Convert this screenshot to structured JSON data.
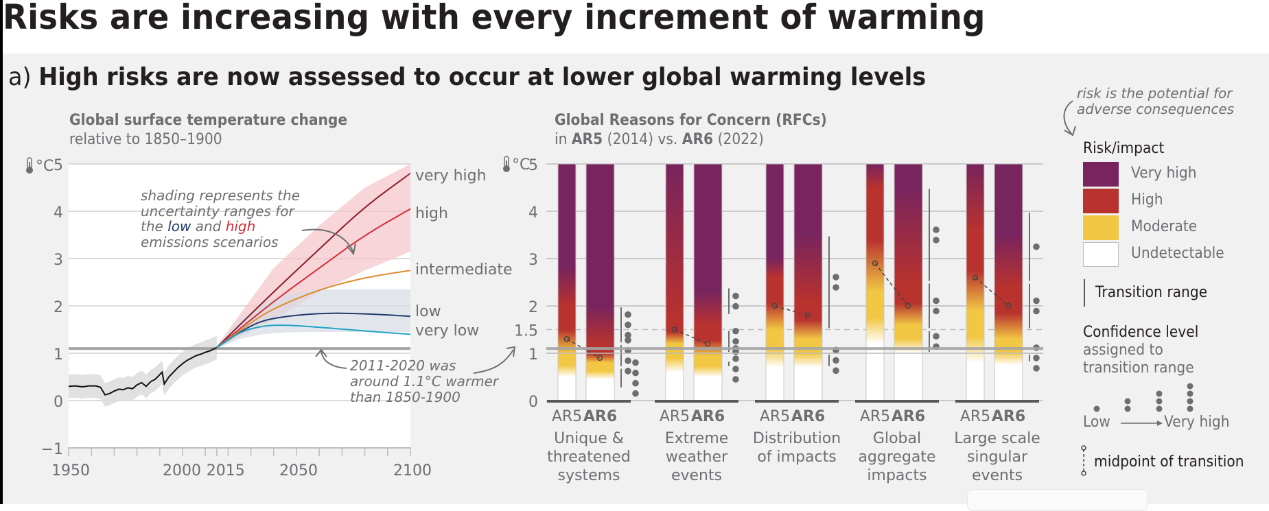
{
  "header": {
    "title": "Risks are increasing with every increment of warming"
  },
  "panel": {
    "letter": "a)",
    "title": "High risks are now assessed to occur at lower global warming levels"
  },
  "chart_data": [
    {
      "type": "line",
      "title": "Global surface temperature change",
      "subtitle": "relative to 1850–1900",
      "ylabel": "°C",
      "ylim": [
        -1,
        5
      ],
      "xlim": [
        1950,
        2100
      ],
      "yticks": [
        "5",
        "4",
        "3",
        "2",
        "1",
        "0",
        "−1"
      ],
      "ytick_values": [
        5,
        4,
        3,
        2,
        1,
        0,
        -1
      ],
      "xticks": [
        "1950",
        "2000",
        "2015",
        "2050",
        "2100"
      ],
      "xtick_values": [
        1950,
        2000,
        2015,
        2050,
        2100
      ],
      "grid": true,
      "reference_line": {
        "value": 1.1,
        "label": "2011-2020 was around 1.1°C warmer than 1850-1900"
      },
      "annotations": {
        "shading_note": [
          "shading represents the",
          "uncertainty ranges for",
          "the ",
          "low",
          " and ",
          "high",
          "emissions scenarios"
        ],
        "reference_note": [
          "2011-2020 was",
          "around 1.1°C warmer",
          "than 1850-1900"
        ]
      },
      "observed": {
        "name": "observed",
        "color": "#111111",
        "x": [
          1950,
          1953,
          1956,
          1959,
          1962,
          1964,
          1966,
          1968,
          1970,
          1972,
          1974,
          1976,
          1978,
          1980,
          1982,
          1984,
          1986,
          1988,
          1990,
          1991,
          1992,
          1994,
          1996,
          1998,
          2000,
          2002,
          2004,
          2006,
          2008,
          2010,
          2012,
          2015
        ],
        "y": [
          0.3,
          0.31,
          0.29,
          0.31,
          0.31,
          0.28,
          0.12,
          0.15,
          0.2,
          0.24,
          0.23,
          0.27,
          0.25,
          0.33,
          0.38,
          0.3,
          0.4,
          0.45,
          0.55,
          0.6,
          0.35,
          0.5,
          0.6,
          0.7,
          0.78,
          0.85,
          0.9,
          0.95,
          0.98,
          1.02,
          1.05,
          1.12
        ],
        "band_low_offset": -0.25,
        "band_high_offset": 0.25
      },
      "scenarios": [
        {
          "name": "very high",
          "color": "#8a1c2b",
          "x": [
            2015,
            2040,
            2060,
            2080,
            2100
          ],
          "y": [
            1.12,
            2.3,
            3.2,
            4.1,
            4.8
          ]
        },
        {
          "name": "high",
          "color": "#d42e3b",
          "x": [
            2015,
            2040,
            2060,
            2080,
            2100
          ],
          "y": [
            1.12,
            2.1,
            2.8,
            3.5,
            4.05
          ]
        },
        {
          "name": "intermediate",
          "color": "#e08a2f",
          "x": [
            2015,
            2030,
            2040,
            2060,
            2080,
            2100
          ],
          "y": [
            1.12,
            1.65,
            1.95,
            2.35,
            2.6,
            2.75
          ]
        },
        {
          "name": "low",
          "color": "#1f3a6b",
          "x": [
            2015,
            2030,
            2040,
            2060,
            2080,
            2100
          ],
          "y": [
            1.12,
            1.6,
            1.75,
            1.85,
            1.84,
            1.78
          ]
        },
        {
          "name": "very low",
          "color": "#1fa3c6",
          "x": [
            2015,
            2025,
            2035,
            2045,
            2060,
            2080,
            2100
          ],
          "y": [
            1.12,
            1.45,
            1.58,
            1.6,
            1.55,
            1.47,
            1.4
          ]
        }
      ],
      "uncertainty_bands": [
        {
          "name": "high emissions range",
          "color": "#f4c3c8",
          "x": [
            2015,
            2040,
            2060,
            2080,
            2100
          ],
          "low": [
            1.1,
            1.7,
            2.3,
            2.75,
            3.15
          ],
          "high": [
            1.15,
            2.8,
            3.7,
            4.5,
            5.0
          ]
        },
        {
          "name": "low emissions range",
          "color": "#d6dbe4",
          "x": [
            2015,
            2025,
            2035,
            2045,
            2060,
            2080,
            2100
          ],
          "low": [
            1.1,
            1.3,
            1.4,
            1.44,
            1.45,
            1.45,
            1.45
          ],
          "high": [
            1.15,
            1.7,
            2.05,
            2.25,
            2.35,
            2.35,
            2.35
          ]
        }
      ]
    },
    {
      "type": "bar",
      "title": "Global Reasons for Concern (RFCs)",
      "subtitle_parts": [
        "in ",
        "AR5",
        " (2014) vs. ",
        "AR6",
        " (2022)"
      ],
      "ylabel": "°C",
      "ylim": [
        0,
        5
      ],
      "yticks": [
        "5",
        "4",
        "3",
        "2",
        "1.5",
        "1",
        "0"
      ],
      "ytick_values": [
        5,
        4,
        3,
        2,
        1.5,
        1,
        0
      ],
      "grid": true,
      "reference_line": 1.1,
      "colors": {
        "very_high": "#78245e",
        "high": "#b8322e",
        "moderate": "#f2c744",
        "undetectable": "#ffffff"
      },
      "categories": [
        {
          "label": [
            "Unique &",
            "threatened",
            "systems"
          ],
          "ar5": {
            "label": "AR5",
            "undetectable_top": 0.5,
            "moderate_top": 1.0,
            "high_top": 2.0,
            "very_high_top": 2.8,
            "midpoint": 1.3
          },
          "ar6": {
            "label": "AR6",
            "undetectable_top": 0.45,
            "moderate_top": 0.8,
            "high_top": 1.2,
            "very_high_top": 2.0,
            "midpoint": 0.9
          },
          "transitions": [
            {
              "low": 1.2,
              "high": 2.0,
              "confidence": 3
            },
            {
              "low": 0.7,
              "high": 1.2,
              "confidence": 4
            },
            {
              "low": 0.25,
              "high": 0.7,
              "confidence": 4
            }
          ]
        },
        {
          "label": [
            "Extreme",
            "weather",
            "events"
          ],
          "ar5": {
            "label": "AR5",
            "undetectable_top": 0.6,
            "moderate_top": 1.2,
            "high_top": 1.7,
            "very_high_top": 5.0,
            "midpoint": 1.5
          },
          "ar6": {
            "label": "AR6",
            "undetectable_top": 0.5,
            "moderate_top": 0.95,
            "high_top": 1.6,
            "very_high_top": 2.3,
            "midpoint": 1.2
          },
          "transitions": [
            {
              "low": 1.8,
              "high": 2.4,
              "confidence": 2
            },
            {
              "low": 1.0,
              "high": 1.5,
              "confidence": 3
            },
            {
              "low": 0.7,
              "high": 0.85,
              "confidence": 4
            }
          ]
        },
        {
          "label": [
            "Distribution",
            "of impacts"
          ],
          "ar5": {
            "label": "AR5",
            "undetectable_top": 0.7,
            "moderate_top": 1.5,
            "high_top": 2.6,
            "very_high_top": 3.0,
            "midpoint": 2.0
          },
          "ar6": {
            "label": "AR6",
            "undetectable_top": 0.7,
            "moderate_top": 1.3,
            "high_top": 2.1,
            "very_high_top": 3.5,
            "midpoint": 1.8
          },
          "transitions": [
            {
              "low": 1.5,
              "high": 3.5,
              "confidence": 2
            },
            {
              "low": 0.7,
              "high": 1.0,
              "confidence": 3
            }
          ]
        },
        {
          "label": [
            "Global",
            "aggregate",
            "impacts"
          ],
          "ar5": {
            "label": "AR5",
            "undetectable_top": 1.2,
            "moderate_top": 2.3,
            "high_top": 4.5,
            "very_high_top": 5.0,
            "midpoint": 2.9
          },
          "ar6": {
            "label": "AR6",
            "undetectable_top": 1.0,
            "moderate_top": 1.6,
            "high_top": 2.5,
            "very_high_top": 4.5,
            "midpoint": 2.0
          },
          "transitions": [
            {
              "low": 2.5,
              "high": 4.5,
              "confidence": 2
            },
            {
              "low": 1.5,
              "high": 2.5,
              "confidence": 2
            },
            {
              "low": 1.0,
              "high": 1.5,
              "confidence": 2
            }
          ]
        },
        {
          "label": [
            "Large scale",
            "singular",
            "events"
          ],
          "ar5": {
            "label": "AR5",
            "undetectable_top": 0.8,
            "moderate_top": 1.9,
            "high_top": 3.6,
            "very_high_top": 5.0,
            "midpoint": 2.6
          },
          "ar6": {
            "label": "AR6",
            "undetectable_top": 0.75,
            "moderate_top": 1.3,
            "high_top": 2.4,
            "very_high_top": 3.5,
            "midpoint": 2.0
          },
          "transitions": [
            {
              "low": 2.5,
              "high": 4.0,
              "confidence": 1
            },
            {
              "low": 1.5,
              "high": 2.5,
              "confidence": 2
            },
            {
              "low": 0.8,
              "high": 1.0,
              "confidence": 3
            }
          ]
        }
      ]
    }
  ],
  "legend": {
    "note": [
      "risk is the potential for",
      "adverse consequences"
    ],
    "risk_heading": "Risk/impact",
    "risk_levels": [
      {
        "label": "Very high",
        "color": "#78245e"
      },
      {
        "label": "High",
        "color": "#b8322e"
      },
      {
        "label": "Moderate",
        "color": "#f2c744"
      },
      {
        "label": "Undetectable",
        "color": "#ffffff"
      }
    ],
    "transition_label": "Transition range",
    "confidence_heading": "Confidence level",
    "confidence_sub": [
      "assigned to",
      "transition range"
    ],
    "confidence_levels": [
      1,
      2,
      3,
      4
    ],
    "confidence_low": "Low",
    "confidence_high": "Very high",
    "midpoint_label": "midpoint of transition"
  }
}
